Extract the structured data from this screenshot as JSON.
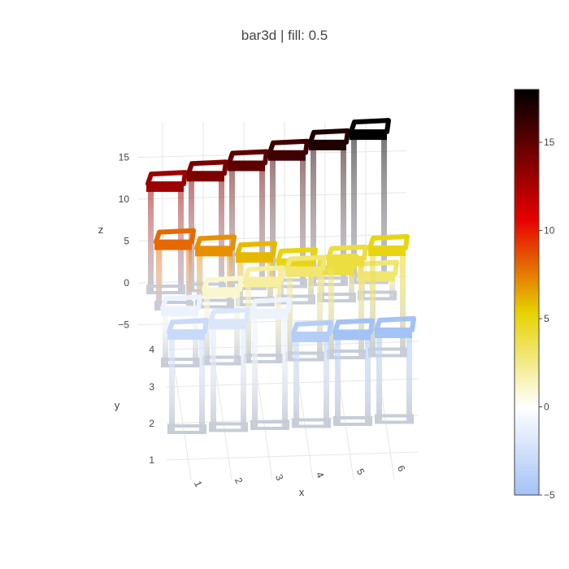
{
  "chart_data": {
    "type": "bar3d",
    "title": "bar3d | fill: 0.5",
    "xlabel": "x",
    "ylabel": "y",
    "zlabel": "z",
    "x_ticks": [
      "1",
      "2",
      "3",
      "4",
      "5",
      "6"
    ],
    "y_ticks": [
      "1",
      "2",
      "3",
      "4"
    ],
    "z_ticks": [
      "15",
      "10",
      "5",
      "0",
      "−5"
    ],
    "z_range": [
      -7,
      18
    ],
    "colorscale": {
      "range": [
        -5,
        18
      ],
      "ticks": [
        "15",
        "10",
        "5",
        "0",
        "−5"
      ],
      "tick_values": [
        15,
        10,
        5,
        0,
        -5
      ],
      "stops": [
        [
          0.0,
          "#a3c2f5"
        ],
        [
          0.217,
          "#ffffff"
        ],
        [
          0.45,
          "#e6d200"
        ],
        [
          0.68,
          "#e60000"
        ],
        [
          1.0,
          "#000000"
        ]
      ]
    },
    "bar_rows": [
      {
        "y": 4,
        "values": [
          13,
          14,
          15,
          16,
          17,
          18
        ]
      },
      {
        "y": 3,
        "values": [
          8,
          7,
          6,
          5,
          4,
          3
        ]
      },
      {
        "y": 2,
        "values": [
          -1,
          1,
          2,
          3,
          4,
          5
        ]
      },
      {
        "y": 1,
        "values": [
          -3,
          -2,
          -1,
          -4,
          -5,
          -5
        ]
      }
    ],
    "legend": "none",
    "grid": true
  }
}
